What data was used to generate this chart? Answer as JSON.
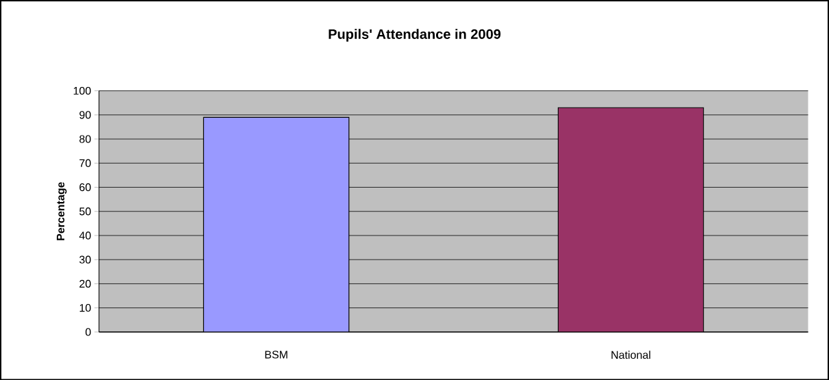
{
  "chart_data": {
    "type": "bar",
    "title": "Pupils' Attendance in 2009",
    "ylabel": "Percentage",
    "categories": [
      "BSM",
      "National"
    ],
    "values": [
      89,
      93
    ],
    "colors": [
      "#9999ff",
      "#993366"
    ],
    "ylim": [
      0,
      100
    ],
    "yticks": [
      0,
      10,
      20,
      30,
      40,
      50,
      60,
      70,
      80,
      90,
      100
    ],
    "grid": "y"
  }
}
